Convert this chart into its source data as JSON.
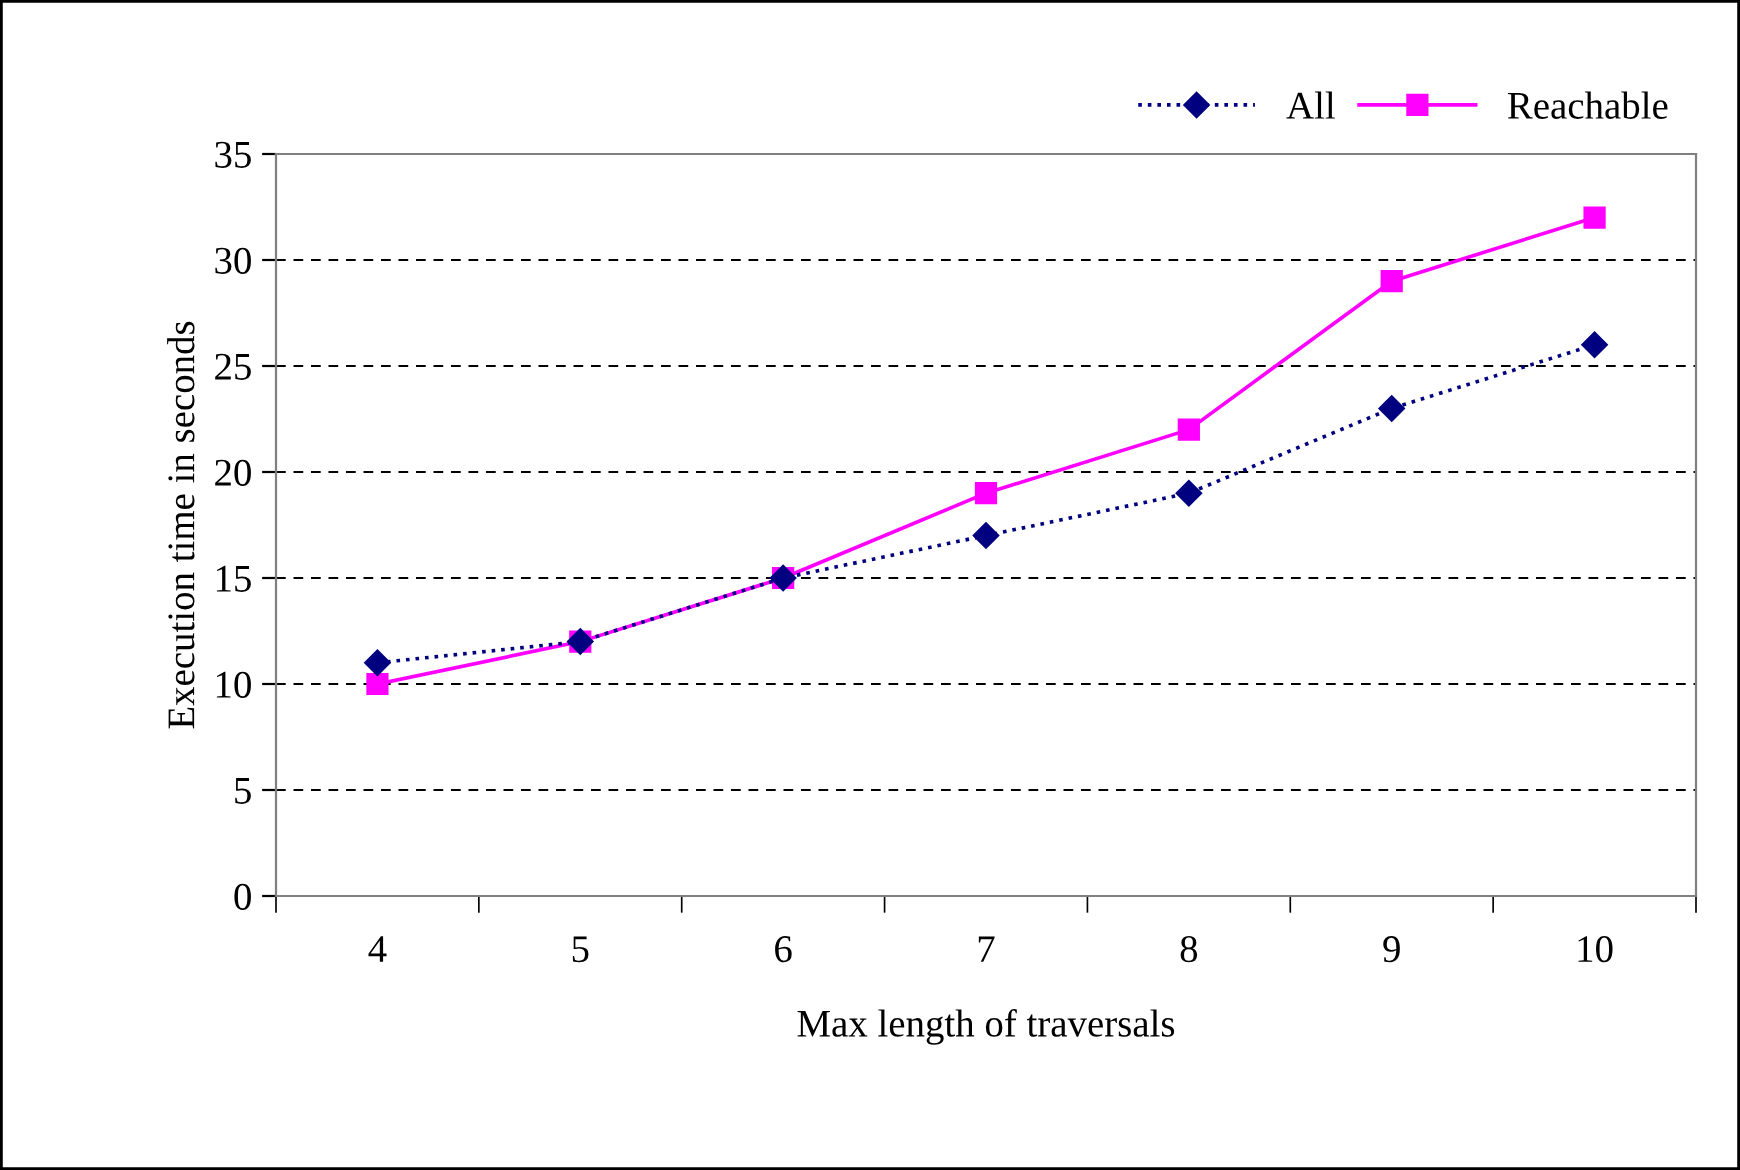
{
  "chart_data": {
    "type": "line",
    "xlabel": "Max length of traversals",
    "ylabel": "Execution time in seconds",
    "categories": [
      "4",
      "5",
      "6",
      "7",
      "8",
      "9",
      "10"
    ],
    "series": [
      {
        "name": "All",
        "color": "#000080",
        "marker": "diamond",
        "line_style": "dotted",
        "values": [
          11,
          12,
          15,
          17,
          19,
          23,
          26
        ]
      },
      {
        "name": "Reachable",
        "color": "#ff00ff",
        "marker": "square",
        "line_style": "solid",
        "values": [
          10,
          12,
          15,
          19,
          22,
          29,
          32
        ]
      }
    ],
    "ylim": [
      0,
      35
    ],
    "yticks": [
      0,
      5,
      10,
      15,
      20,
      25,
      30,
      35
    ],
    "grid": "y",
    "legend": "top right"
  }
}
